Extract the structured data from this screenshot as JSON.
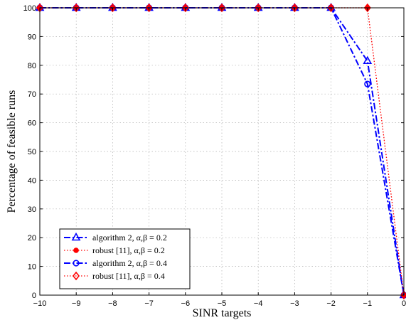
{
  "chart_data": {
    "type": "line",
    "title": "",
    "xlabel": "SINR targets",
    "ylabel": "Percentage of feasible runs",
    "xlim": [
      -10,
      0
    ],
    "ylim": [
      0,
      100
    ],
    "xticks": [
      -10,
      -9,
      -8,
      -7,
      -6,
      -5,
      -4,
      -3,
      -2,
      -1,
      0
    ],
    "yticks": [
      0,
      10,
      20,
      30,
      40,
      50,
      60,
      70,
      80,
      90,
      100
    ],
    "grid": true,
    "legend_position": "bottom-left",
    "series": [
      {
        "name": "algorithm 2, α,β = 0.2",
        "color": "#0000ff",
        "line": "dash-dot",
        "marker": "triangle",
        "x": [
          -10,
          -9,
          -8,
          -7,
          -6,
          -5,
          -4,
          -3,
          -2,
          -1,
          0
        ],
        "y": [
          100,
          100,
          100,
          100,
          100,
          100,
          100,
          100,
          100,
          81.5,
          0
        ]
      },
      {
        "name": "robust [11], α,β = 0.2",
        "color": "#ff0000",
        "line": "dotted",
        "marker": "dot",
        "x": [
          -10,
          -9,
          -8,
          -7,
          -6,
          -5,
          -4,
          -3,
          -2,
          -1,
          0
        ],
        "y": [
          100,
          100,
          100,
          100,
          100,
          100,
          100,
          100,
          100,
          100,
          0
        ]
      },
      {
        "name": "algorithm 2, α,β = 0.4",
        "color": "#0000ff",
        "line": "dash-dot",
        "marker": "circle",
        "x": [
          -10,
          -9,
          -8,
          -7,
          -6,
          -5,
          -4,
          -3,
          -2,
          -1,
          0
        ],
        "y": [
          100,
          100,
          100,
          100,
          100,
          100,
          100,
          100,
          100,
          73.5,
          0
        ]
      },
      {
        "name": "robust [11], α,β = 0.4",
        "color": "#ff0000",
        "line": "dotted",
        "marker": "diamond",
        "x": [
          -10,
          -9,
          -8,
          -7,
          -6,
          -5,
          -4,
          -3,
          -2,
          -1,
          0
        ],
        "y": [
          100,
          100,
          100,
          100,
          100,
          100,
          100,
          100,
          100,
          100,
          0
        ]
      }
    ]
  }
}
